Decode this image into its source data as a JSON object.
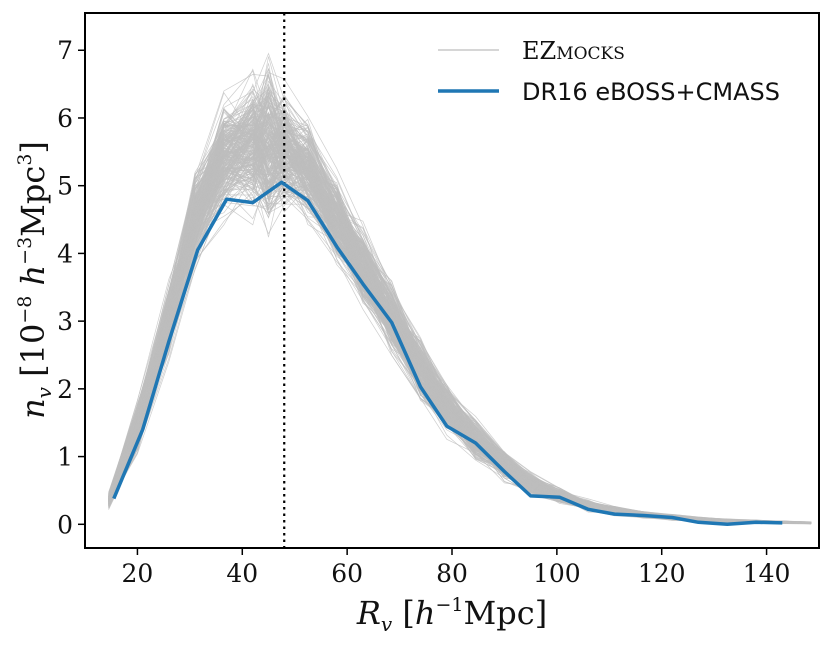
{
  "chart_data": {
    "type": "line",
    "title": "",
    "xlabel": "R_v [h^{-1}Mpc]",
    "ylabel": "n_v [10^{-8} h^{-3}Mpc^{3}]",
    "xlim": [
      10,
      150
    ],
    "ylim": [
      -0.35,
      7.55
    ],
    "xticks": [
      20,
      40,
      60,
      80,
      100,
      120,
      140
    ],
    "yticks": [
      0,
      1,
      2,
      3,
      4,
      5,
      6,
      7
    ],
    "grid": false,
    "legend_position": "top-right",
    "vline": {
      "x": 48,
      "style": "dotted",
      "color": "#000000"
    },
    "series": [
      {
        "name": "EZmocks",
        "display_main": "EZ",
        "display_sc": "MOCKS",
        "kind": "band",
        "color": "#bdbdbd",
        "x": [
          14.5,
          20,
          26,
          31,
          36.5,
          42,
          45,
          48,
          52.5,
          58,
          63,
          68.5,
          74,
          79,
          84.5,
          90,
          95,
          100.5,
          106,
          111,
          116.5,
          122,
          127,
          132.5,
          138,
          143,
          148.5
        ],
        "lower": [
          0.2,
          1.0,
          2.4,
          3.7,
          4.3,
          4.3,
          3.95,
          4.5,
          4.4,
          3.7,
          3.1,
          2.4,
          1.75,
          1.25,
          0.9,
          0.6,
          0.4,
          0.28,
          0.18,
          0.12,
          0.08,
          0.05,
          0.03,
          0.02,
          0.01,
          0.0,
          0.0
        ],
        "upper": [
          0.5,
          1.9,
          3.7,
          5.4,
          6.5,
          6.9,
          7.2,
          6.75,
          6.3,
          5.3,
          4.5,
          3.7,
          2.9,
          2.2,
          1.65,
          1.15,
          0.8,
          0.55,
          0.38,
          0.28,
          0.2,
          0.15,
          0.11,
          0.09,
          0.07,
          0.05,
          0.04
        ],
        "center": [
          0.35,
          1.45,
          3.0,
          4.5,
          5.4,
          5.6,
          5.6,
          5.5,
          5.25,
          4.5,
          3.8,
          3.05,
          2.3,
          1.72,
          1.25,
          0.88,
          0.6,
          0.42,
          0.28,
          0.2,
          0.14,
          0.1,
          0.07,
          0.05,
          0.04,
          0.03,
          0.02
        ]
      },
      {
        "name": "DR16 eBOSS+CMASS",
        "kind": "line",
        "color": "#1f77b4",
        "x": [
          15.5,
          21,
          26,
          31.5,
          37,
          42,
          47.5,
          52.5,
          58,
          63,
          68.5,
          74,
          79,
          84.5,
          90,
          95,
          100.5,
          106,
          111,
          116.5,
          122,
          127,
          132.5,
          138,
          143
        ],
        "y": [
          0.38,
          1.4,
          2.7,
          4.05,
          4.8,
          4.75,
          5.05,
          4.78,
          4.1,
          3.55,
          2.98,
          2.03,
          1.45,
          1.2,
          0.78,
          0.42,
          0.4,
          0.22,
          0.15,
          0.13,
          0.1,
          0.03,
          0.0,
          0.03,
          0.02
        ]
      }
    ]
  }
}
